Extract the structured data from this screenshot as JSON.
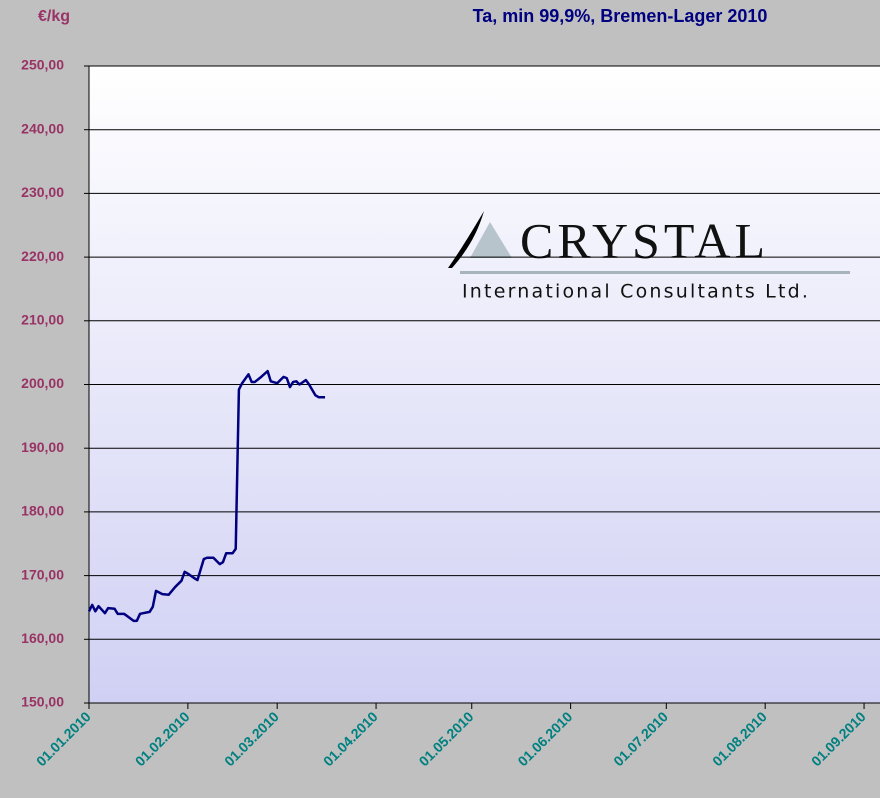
{
  "chart_data": {
    "type": "line",
    "title": "Ta, min 99,9%, Bremen-Lager 2010",
    "y_label": "€/kg",
    "x": [
      "2010-01-01",
      "2010-01-02",
      "2010-01-03",
      "2010-01-04",
      "2010-01-06",
      "2010-01-07",
      "2010-01-09",
      "2010-01-10",
      "2010-01-12",
      "2010-01-15",
      "2010-01-16",
      "2010-01-17",
      "2010-01-20",
      "2010-01-21",
      "2010-01-22",
      "2010-01-24",
      "2010-01-26",
      "2010-01-28",
      "2010-01-30",
      "2010-01-31",
      "2010-02-01",
      "2010-02-03",
      "2010-02-04",
      "2010-02-06",
      "2010-02-07",
      "2010-02-09",
      "2010-02-11",
      "2010-02-12",
      "2010-02-13",
      "2010-02-15",
      "2010-02-16",
      "2010-02-17",
      "2010-02-18",
      "2010-02-20",
      "2010-02-21",
      "2010-02-22",
      "2010-02-24",
      "2010-02-26",
      "2010-02-27",
      "2010-03-01",
      "2010-03-03",
      "2010-03-04",
      "2010-03-05",
      "2010-03-06",
      "2010-03-07",
      "2010-03-08",
      "2010-03-10",
      "2010-03-11",
      "2010-03-13",
      "2010-03-14",
      "2010-03-16"
    ],
    "series": [
      {
        "name": "Ta",
        "color": "#000080",
        "values": [
          164.4,
          165.4,
          164.4,
          165.2,
          164.1,
          164.9,
          164.8,
          164.0,
          164.0,
          162.9,
          162.9,
          164.0,
          164.3,
          165.1,
          167.6,
          167.1,
          167.0,
          168.2,
          169.2,
          170.6,
          170.3,
          169.6,
          169.3,
          172.6,
          172.8,
          172.8,
          171.8,
          172.1,
          173.5,
          173.5,
          174.2,
          199.2,
          200.2,
          201.6,
          200.4,
          200.4,
          201.2,
          202.1,
          200.5,
          200.2,
          201.2,
          201.0,
          199.6,
          200.4,
          200.5,
          200.0,
          200.7,
          200.0,
          198.3,
          198.0,
          198.0
        ]
      }
    ],
    "xlim": [
      "2010-01-01",
      "2010-09-06"
    ],
    "xticks": [
      {
        "value": "2010-01-01",
        "label": "01.01.2010"
      },
      {
        "value": "2010-02-01",
        "label": "01.02.2010"
      },
      {
        "value": "2010-03-01",
        "label": "01.03.2010"
      },
      {
        "value": "2010-04-01",
        "label": "01.04.2010"
      },
      {
        "value": "2010-05-01",
        "label": "01.05.2010"
      },
      {
        "value": "2010-06-01",
        "label": "01.06.2010"
      },
      {
        "value": "2010-07-01",
        "label": "01.07.2010"
      },
      {
        "value": "2010-08-01",
        "label": "01.08.2010"
      },
      {
        "value": "2010-09-01",
        "label": "01.09.2010"
      }
    ],
    "ylim": [
      150,
      250
    ],
    "yticks": [
      {
        "value": 150,
        "label": "150,00"
      },
      {
        "value": 160,
        "label": "160,00"
      },
      {
        "value": 170,
        "label": "170,00"
      },
      {
        "value": 180,
        "label": "180,00"
      },
      {
        "value": 190,
        "label": "190,00"
      },
      {
        "value": 200,
        "label": "200,00"
      },
      {
        "value": 210,
        "label": "210,00"
      },
      {
        "value": 220,
        "label": "220,00"
      },
      {
        "value": 230,
        "label": "230,00"
      },
      {
        "value": 240,
        "label": "240,00"
      },
      {
        "value": 250,
        "label": "250,00"
      }
    ],
    "grid": true
  },
  "logo": {
    "name": "CRYSTAL",
    "tagline": "International Consultants Ltd."
  }
}
